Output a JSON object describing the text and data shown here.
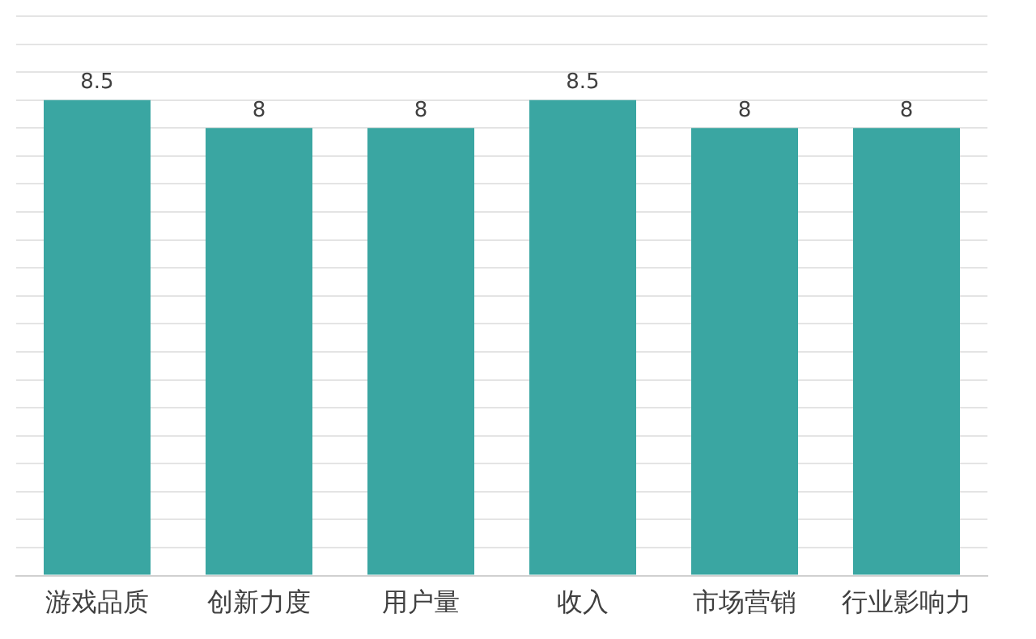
{
  "chart_data": {
    "type": "bar",
    "categories": [
      "游戏品质",
      "创新力度",
      "用户量",
      "收入",
      "市场营销",
      "行业影响力"
    ],
    "values": [
      8.5,
      8,
      8,
      8.5,
      8,
      8
    ],
    "color": "#3aa6a2",
    "data_labels": true,
    "grid": "y",
    "tick_labels": "x",
    "ylim": [
      0,
      10
    ],
    "yticks": [
      {
        "value": 0,
        "label": null
      },
      {
        "value": 0.5,
        "label": null
      },
      {
        "value": 1,
        "label": null
      },
      {
        "value": 1.5,
        "label": null
      },
      {
        "value": 2,
        "label": null
      },
      {
        "value": 2.5,
        "label": null
      },
      {
        "value": 3,
        "label": null
      },
      {
        "value": 3.5,
        "label": null
      },
      {
        "value": 4,
        "label": null
      },
      {
        "value": 4.5,
        "label": null
      },
      {
        "value": 5,
        "label": null
      },
      {
        "value": 5.5,
        "label": null
      },
      {
        "value": 6,
        "label": null
      },
      {
        "value": 6.5,
        "label": null
      },
      {
        "value": 7,
        "label": null
      },
      {
        "value": 7.5,
        "label": null
      },
      {
        "value": 8,
        "label": null
      },
      {
        "value": 8.5,
        "label": null
      },
      {
        "value": 9,
        "label": null
      },
      {
        "value": 9.5,
        "label": null
      },
      {
        "value": 10,
        "label": null
      }
    ]
  }
}
